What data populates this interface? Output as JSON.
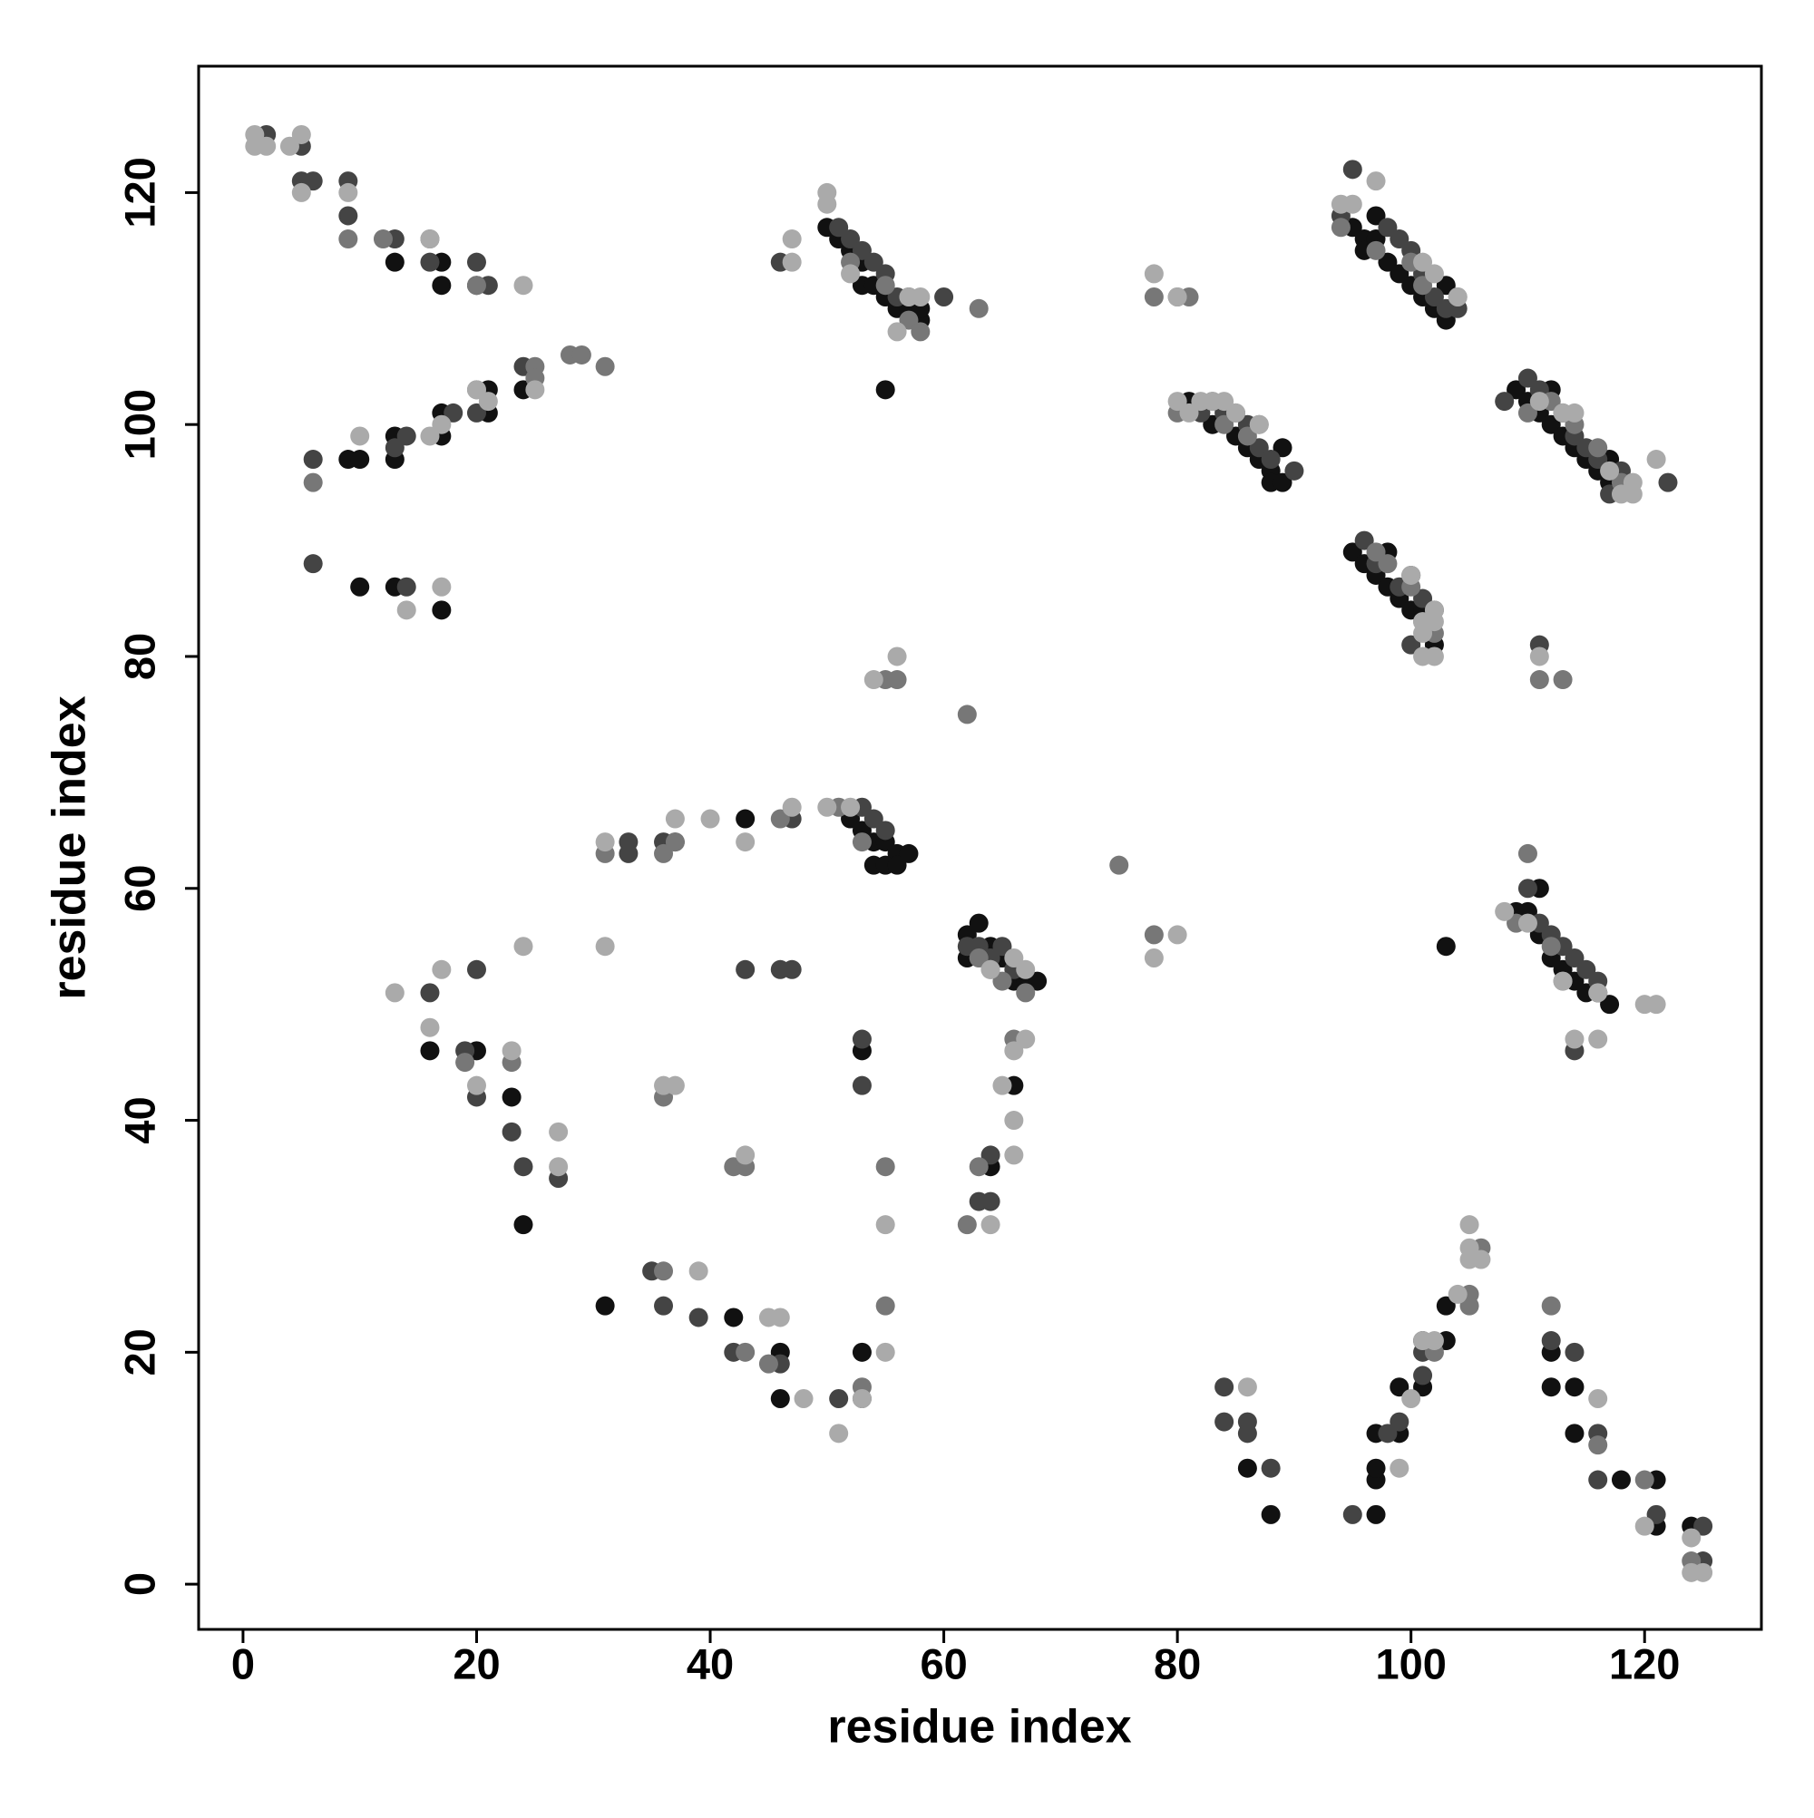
{
  "chart_data": {
    "type": "scatter",
    "xlabel": "residue index",
    "ylabel": "residue index",
    "xlim": [
      -3.8,
      130
    ],
    "ylim": [
      -3.9,
      130.9
    ],
    "xticks": [
      0,
      20,
      40,
      60,
      80,
      100,
      120
    ],
    "yticks": [
      0,
      20,
      40,
      60,
      80,
      100,
      120
    ],
    "series": [
      {
        "color": "#111111",
        "x": [
          13,
          17,
          17,
          20,
          13,
          17,
          17,
          21,
          21,
          24,
          9,
          10,
          13,
          10,
          13,
          17,
          50,
          51,
          52,
          53,
          53,
          54,
          55,
          56,
          57,
          58,
          55,
          58,
          95,
          96,
          96,
          97,
          97,
          98,
          99,
          100,
          101,
          102,
          103,
          103,
          81,
          83,
          85,
          86,
          87,
          88,
          88,
          89,
          89,
          109,
          110,
          111,
          112,
          113,
          114,
          115,
          116,
          117,
          117,
          112,
          95,
          96,
          97,
          98,
          98,
          99,
          100,
          101,
          102,
          43,
          52,
          53,
          54,
          55,
          56,
          57,
          54,
          55,
          56,
          62,
          62,
          63,
          64,
          65,
          66,
          67,
          68,
          109,
          110,
          111,
          111,
          112,
          113,
          114,
          115,
          116,
          117,
          103,
          23,
          24,
          20,
          16,
          66,
          64,
          53,
          31,
          42,
          46,
          46,
          53,
          86,
          88,
          97,
          97,
          97,
          97,
          99,
          99,
          101,
          101,
          103,
          103,
          112,
          112,
          114,
          114,
          118,
          121,
          121,
          124
        ],
        "y": [
          114,
          114,
          112,
          112,
          99,
          99,
          101,
          101,
          103,
          103,
          97,
          97,
          97,
          86,
          86,
          84,
          117,
          116,
          115,
          114,
          112,
          112,
          111,
          110,
          110,
          109,
          103,
          110,
          117,
          116,
          115,
          118,
          116,
          114,
          113,
          112,
          111,
          110,
          109,
          112,
          102,
          100,
          99,
          98,
          97,
          96,
          95,
          95,
          98,
          103,
          102,
          101,
          100,
          99,
          98,
          97,
          96,
          95,
          97,
          103,
          89,
          88,
          87,
          89,
          86,
          85,
          84,
          84,
          81,
          66,
          66,
          65,
          64,
          64,
          63,
          63,
          62,
          62,
          62,
          56,
          54,
          57,
          55,
          54,
          52,
          52,
          52,
          58,
          58,
          56,
          60,
          54,
          53,
          52,
          51,
          51,
          50,
          55,
          42,
          31,
          46,
          46,
          43,
          36,
          46,
          24,
          23,
          20,
          16,
          20,
          10,
          6,
          6,
          9,
          10,
          13,
          13,
          17,
          17,
          21,
          21,
          24,
          20,
          17,
          17,
          13,
          9,
          9,
          5,
          5
        ]
      },
      {
        "color": "#444444",
        "x": [
          5,
          9,
          13,
          16,
          20,
          21,
          24,
          13,
          14,
          18,
          20,
          6,
          14,
          9,
          5,
          2,
          51,
          52,
          53,
          54,
          55,
          56,
          57,
          60,
          46,
          94,
          95,
          98,
          99,
          100,
          101,
          102,
          103,
          104,
          82,
          84,
          86,
          87,
          88,
          90,
          108,
          110,
          111,
          113,
          114,
          115,
          116,
          118,
          122,
          117,
          96,
          97,
          99,
          100,
          101,
          102,
          100,
          33,
          36,
          37,
          47,
          53,
          54,
          55,
          62,
          63,
          64,
          65,
          66,
          110,
          111,
          112,
          113,
          114,
          115,
          116,
          111,
          114,
          16,
          20,
          19,
          20,
          23,
          24,
          27,
          43,
          46,
          47,
          53,
          53,
          64,
          63,
          64,
          35,
          36,
          39,
          42,
          46,
          51,
          53,
          84,
          84,
          86,
          86,
          88,
          95,
          98,
          99,
          101,
          101,
          112,
          114,
          116,
          116,
          121,
          125,
          125,
          6,
          33,
          6
        ],
        "y": [
          121,
          118,
          116,
          114,
          114,
          112,
          105,
          98,
          99,
          101,
          101,
          97,
          86,
          121,
          124,
          125,
          117,
          116,
          115,
          114,
          113,
          111,
          111,
          111,
          114,
          118,
          122,
          117,
          116,
          115,
          113,
          111,
          110,
          110,
          101,
          101,
          100,
          98,
          97,
          96,
          102,
          104,
          103,
          101,
          99,
          98,
          97,
          96,
          95,
          94,
          90,
          88,
          86,
          87,
          85,
          84,
          81,
          64,
          64,
          64,
          66,
          67,
          66,
          65,
          55,
          55,
          54,
          55,
          53,
          60,
          57,
          56,
          55,
          54,
          53,
          52,
          81,
          46,
          51,
          53,
          46,
          42,
          39,
          36,
          35,
          53,
          53,
          53,
          47,
          43,
          37,
          33,
          33,
          27,
          24,
          23,
          20,
          19,
          16,
          16,
          17,
          14,
          14,
          13,
          10,
          6,
          13,
          14,
          18,
          20,
          21,
          20,
          13,
          9,
          6,
          2,
          5,
          88,
          63,
          121
        ]
      },
      {
        "color": "#777777",
        "x": [
          9,
          12,
          16,
          20,
          25,
          25,
          28,
          29,
          31,
          20,
          52,
          55,
          57,
          58,
          63,
          80,
          81,
          78,
          94,
          97,
          100,
          101,
          104,
          80,
          83,
          84,
          85,
          86,
          87,
          110,
          112,
          114,
          116,
          118,
          97,
          98,
          100,
          102,
          101,
          31,
          36,
          37,
          46,
          51,
          53,
          63,
          64,
          65,
          67,
          109,
          110,
          112,
          113,
          111,
          113,
          6,
          23,
          19,
          42,
          43,
          36,
          55,
          62,
          63,
          66,
          78,
          75,
          62,
          55,
          56,
          36,
          43,
          45,
          53,
          55,
          105,
          106,
          105,
          102,
          112,
          116,
          120,
          124
        ],
        "y": [
          116,
          116,
          116,
          112,
          105,
          104,
          106,
          106,
          105,
          103,
          114,
          112,
          109,
          108,
          110,
          111,
          111,
          111,
          117,
          115,
          114,
          112,
          111,
          101,
          102,
          100,
          101,
          99,
          100,
          101,
          102,
          100,
          98,
          95,
          89,
          88,
          86,
          82,
          83,
          63,
          63,
          64,
          66,
          67,
          64,
          54,
          53,
          52,
          51,
          57,
          63,
          55,
          52,
          78,
          78,
          95,
          45,
          45,
          36,
          36,
          42,
          36,
          31,
          36,
          47,
          56,
          62,
          75,
          78,
          78,
          27,
          20,
          19,
          17,
          24,
          25,
          29,
          24,
          20,
          24,
          12,
          9,
          2
        ]
      },
      {
        "color": "#aaaaaa",
        "x": [
          1,
          1,
          2,
          4,
          5,
          5,
          9,
          10,
          16,
          17,
          16,
          17,
          14,
          20,
          21,
          24,
          25,
          50,
          50,
          47,
          47,
          52,
          56,
          57,
          58,
          78,
          80,
          94,
          95,
          97,
          101,
          102,
          104,
          80,
          81,
          82,
          83,
          84,
          85,
          87,
          111,
          113,
          114,
          117,
          118,
          119,
          121,
          119,
          100,
          101,
          101,
          102,
          102,
          102,
          101,
          31,
          37,
          40,
          43,
          47,
          50,
          52,
          64,
          66,
          67,
          111,
          108,
          110,
          113,
          116,
          120,
          121,
          114,
          116,
          13,
          17,
          16,
          24,
          31,
          20,
          23,
          27,
          27,
          37,
          36,
          43,
          55,
          64,
          65,
          66,
          66,
          67,
          66,
          55,
          56,
          80,
          78,
          54,
          39,
          45,
          46,
          48,
          51,
          53,
          86,
          99,
          100,
          101,
          102,
          104,
          105,
          105,
          106,
          105,
          116,
          120,
          124,
          124,
          125
        ],
        "y": [
          125,
          124,
          124,
          124,
          125,
          120,
          120,
          99,
          99,
          100,
          116,
          86,
          84,
          103,
          102,
          112,
          103,
          120,
          119,
          116,
          114,
          113,
          108,
          111,
          111,
          113,
          111,
          119,
          119,
          121,
          114,
          113,
          111,
          102,
          101,
          102,
          102,
          102,
          101,
          100,
          102,
          101,
          101,
          96,
          94,
          95,
          97,
          94,
          87,
          83,
          82,
          80,
          83,
          84,
          80,
          64,
          66,
          66,
          64,
          67,
          67,
          67,
          53,
          54,
          53,
          80,
          58,
          57,
          52,
          51,
          50,
          50,
          47,
          47,
          51,
          53,
          48,
          55,
          55,
          43,
          46,
          39,
          36,
          43,
          43,
          37,
          31,
          31,
          43,
          40,
          37,
          47,
          46,
          20,
          80,
          56,
          54,
          78,
          27,
          23,
          23,
          16,
          13,
          16,
          17,
          10,
          16,
          21,
          21,
          25,
          31,
          28,
          28,
          29,
          16,
          5,
          4,
          1,
          1
        ]
      }
    ]
  }
}
